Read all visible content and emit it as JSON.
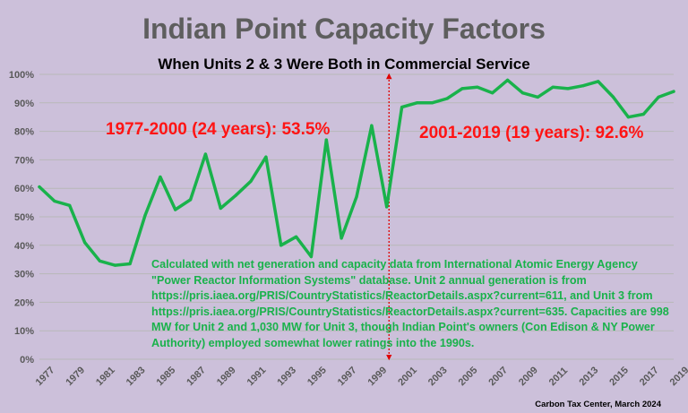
{
  "chart_data": {
    "type": "line",
    "title": "Indian Point Capacity Factors",
    "subtitle": "When Units 2 & 3 Were Both in Commercial Service",
    "x": [
      1977,
      1978,
      1979,
      1980,
      1981,
      1982,
      1983,
      1984,
      1985,
      1986,
      1987,
      1988,
      1989,
      1990,
      1991,
      1992,
      1993,
      1994,
      1995,
      1996,
      1997,
      1998,
      1999,
      2000,
      2001,
      2002,
      2003,
      2004,
      2005,
      2006,
      2007,
      2008,
      2009,
      2010,
      2011,
      2012,
      2013,
      2014,
      2015,
      2016,
      2017,
      2018,
      2019
    ],
    "series": [
      {
        "values": [
          60.5,
          55.5,
          54,
          41,
          34.5,
          33,
          33.5,
          50.5,
          64,
          52.5,
          56,
          72,
          53,
          57.5,
          62.5,
          71,
          40,
          43,
          36,
          77,
          42.5,
          57,
          82,
          53.5,
          88.5,
          90,
          90,
          91.5,
          95,
          95.5,
          93.5,
          98,
          93.5,
          92,
          95.5,
          95,
          96,
          97.5,
          92,
          85,
          86,
          92,
          94
        ],
        "color": "#19b24b"
      }
    ],
    "ylim": [
      0,
      100
    ],
    "y_ticks": [
      "0%",
      "10%",
      "20%",
      "30%",
      "40%",
      "50%",
      "60%",
      "70%",
      "80%",
      "90%",
      "100%"
    ],
    "x_tick_labels": [
      "1977",
      "1979",
      "1981",
      "1983",
      "1985",
      "1987",
      "1989",
      "1991",
      "1993",
      "1995",
      "1997",
      "1999",
      "2001",
      "2003",
      "2005",
      "2007",
      "2009",
      "2011",
      "2013",
      "2015",
      "2017",
      "2019"
    ],
    "grid": true,
    "divider": {
      "x": 2000.15,
      "color": "#e00000",
      "style": "dotted-arrows"
    },
    "annotations": {
      "period1": "1977-2000 (24 years): 53.5%",
      "period2": "2001-2019 (19 years): 92.6%",
      "note": "Calculated with net generation and capacity data from International Atomic Energy Agency \"Power Reactor Information Systems\" database. Unit 2 annual generation is from https://pris.iaea.org/PRIS/CountryStatistics/ReactorDetails.aspx?current=611, and Unit 3 from https://pris.iaea.org/PRIS/CountryStatistics/ReactorDetails.aspx?current=635. Capacities are 998 MW for Unit 2 and 1,030 MW for Unit 3, though Indian Point's owners (Con Edison & NY Power Authority) employed somewhat lower ratings into the 1990s."
    },
    "credit": "Carbon Tax Center, March 2024",
    "colors": {
      "background": "#ccc0da",
      "grid": "#b8b8b8",
      "annotation_red": "#ff1414",
      "note_green": "#19b24b"
    }
  }
}
